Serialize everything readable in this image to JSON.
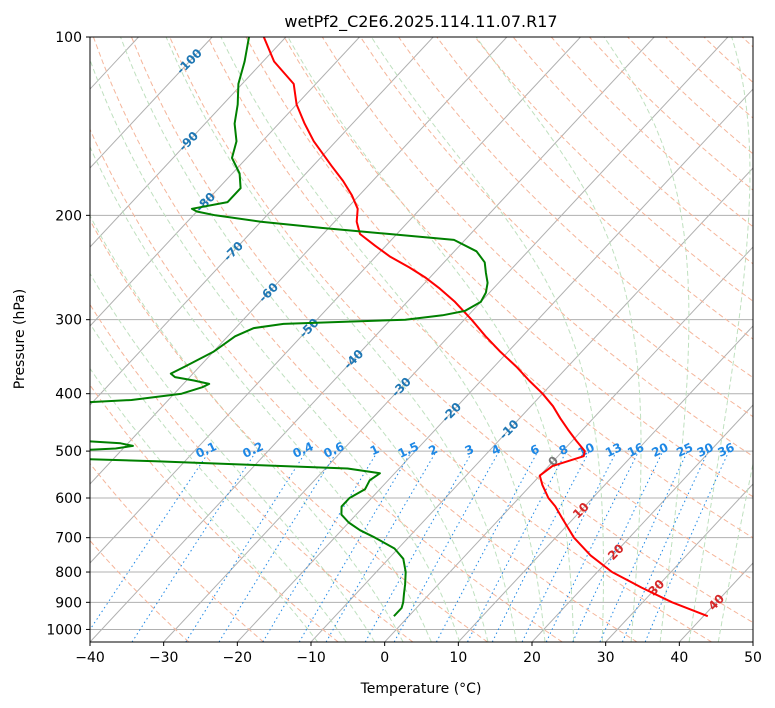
{
  "chart_data": {
    "type": "line",
    "title": "wetPf2_C2E6.2025.114.11.07.R17",
    "xlabel": "Temperature (°C)",
    "ylabel": "Pressure (hPa)",
    "xlim": [
      -40,
      50
    ],
    "ylim": [
      1050,
      100
    ],
    "y_scale": "log",
    "grid": true,
    "x_ticks": [
      -40,
      -30,
      -20,
      -10,
      0,
      10,
      20,
      30,
      40,
      50
    ],
    "y_ticks": [
      100,
      200,
      300,
      400,
      500,
      600,
      700,
      800,
      900,
      1000
    ],
    "skew_deg_per_decade": 75,
    "series": [
      {
        "color": "#ff0000",
        "pressure": [
          950,
          900,
          850,
          800,
          750,
          700,
          650,
          620,
          600,
          570,
          550,
          530,
          510,
          500,
          480,
          460,
          440,
          420,
          400,
          380,
          360,
          340,
          320,
          300,
          280,
          265,
          255,
          245,
          235,
          225,
          215,
          205,
          195,
          185,
          175,
          165,
          150,
          140,
          130,
          120,
          110,
          100
        ],
        "temperature": [
          40.6,
          34.0,
          28.0,
          22.0,
          17.0,
          12.5,
          8.5,
          6.0,
          4.0,
          1.5,
          0.0,
          0.5,
          3.5,
          3.0,
          0.5,
          -2.0,
          -4.5,
          -7.0,
          -10.0,
          -13.5,
          -17.0,
          -21.0,
          -25.0,
          -29.0,
          -33.5,
          -37.5,
          -40.5,
          -44.0,
          -48.0,
          -51.5,
          -55.0,
          -57.0,
          -58.5,
          -61.0,
          -64.0,
          -67.5,
          -73.0,
          -76.5,
          -80.0,
          -83.0,
          -88.5,
          -93.0
        ]
      },
      {
        "color": "#008000",
        "pressure": [
          950,
          920,
          900,
          870,
          840,
          800,
          760,
          730,
          700,
          680,
          660,
          640,
          620,
          600,
          580,
          560,
          545,
          535,
          520,
          510,
          505,
          500,
          495,
          490,
          485,
          480,
          470,
          450,
          430,
          420,
          415,
          410,
          400,
          390,
          385,
          380,
          375,
          370,
          360,
          340,
          320,
          310,
          305,
          300,
          295,
          290,
          280,
          270,
          260,
          250,
          240,
          230,
          220,
          215,
          210,
          205,
          200,
          197,
          195,
          190,
          180,
          170,
          160,
          150,
          140,
          130,
          120,
          110,
          100
        ],
        "temperature": [
          -2.0,
          -2.0,
          -2.5,
          -3.5,
          -4.5,
          -6.0,
          -8.0,
          -10.5,
          -14.5,
          -17.5,
          -20.0,
          -22.0,
          -23.0,
          -23.0,
          -22.0,
          -22.5,
          -22.0,
          -27.0,
          -54.0,
          -77.0,
          -77.0,
          -68.0,
          -61.0,
          -59.0,
          -61.0,
          -67.0,
          -69.0,
          -71.0,
          -73.0,
          -75.0,
          -73.0,
          -65.0,
          -59.0,
          -57.0,
          -56.5,
          -59.0,
          -62.0,
          -63.0,
          -62.0,
          -60.0,
          -59.0,
          -57.5,
          -54.0,
          -38.0,
          -33.5,
          -31.0,
          -30.0,
          -30.5,
          -31.5,
          -33.0,
          -34.5,
          -37.0,
          -41.5,
          -51.0,
          -61.0,
          -70.0,
          -77.0,
          -80.0,
          -81.0,
          -77.0,
          -77.0,
          -79.0,
          -82.0,
          -83.5,
          -86.0,
          -88.0,
          -90.5,
          -92.5,
          -95.0
        ]
      }
    ],
    "dry_adiabat_labels": [
      -100,
      -90,
      -80,
      -70,
      -60,
      -50,
      -40,
      -30,
      -20,
      -10,
      0,
      10,
      20,
      30,
      40
    ],
    "mixing_ratio_labels": [
      "0.1",
      "0.2",
      "0.4",
      "0.6",
      "1",
      "1.5",
      "2",
      "3",
      "4",
      "6",
      "8",
      "10",
      "13",
      "16",
      "20",
      "25",
      "30",
      "36"
    ]
  }
}
